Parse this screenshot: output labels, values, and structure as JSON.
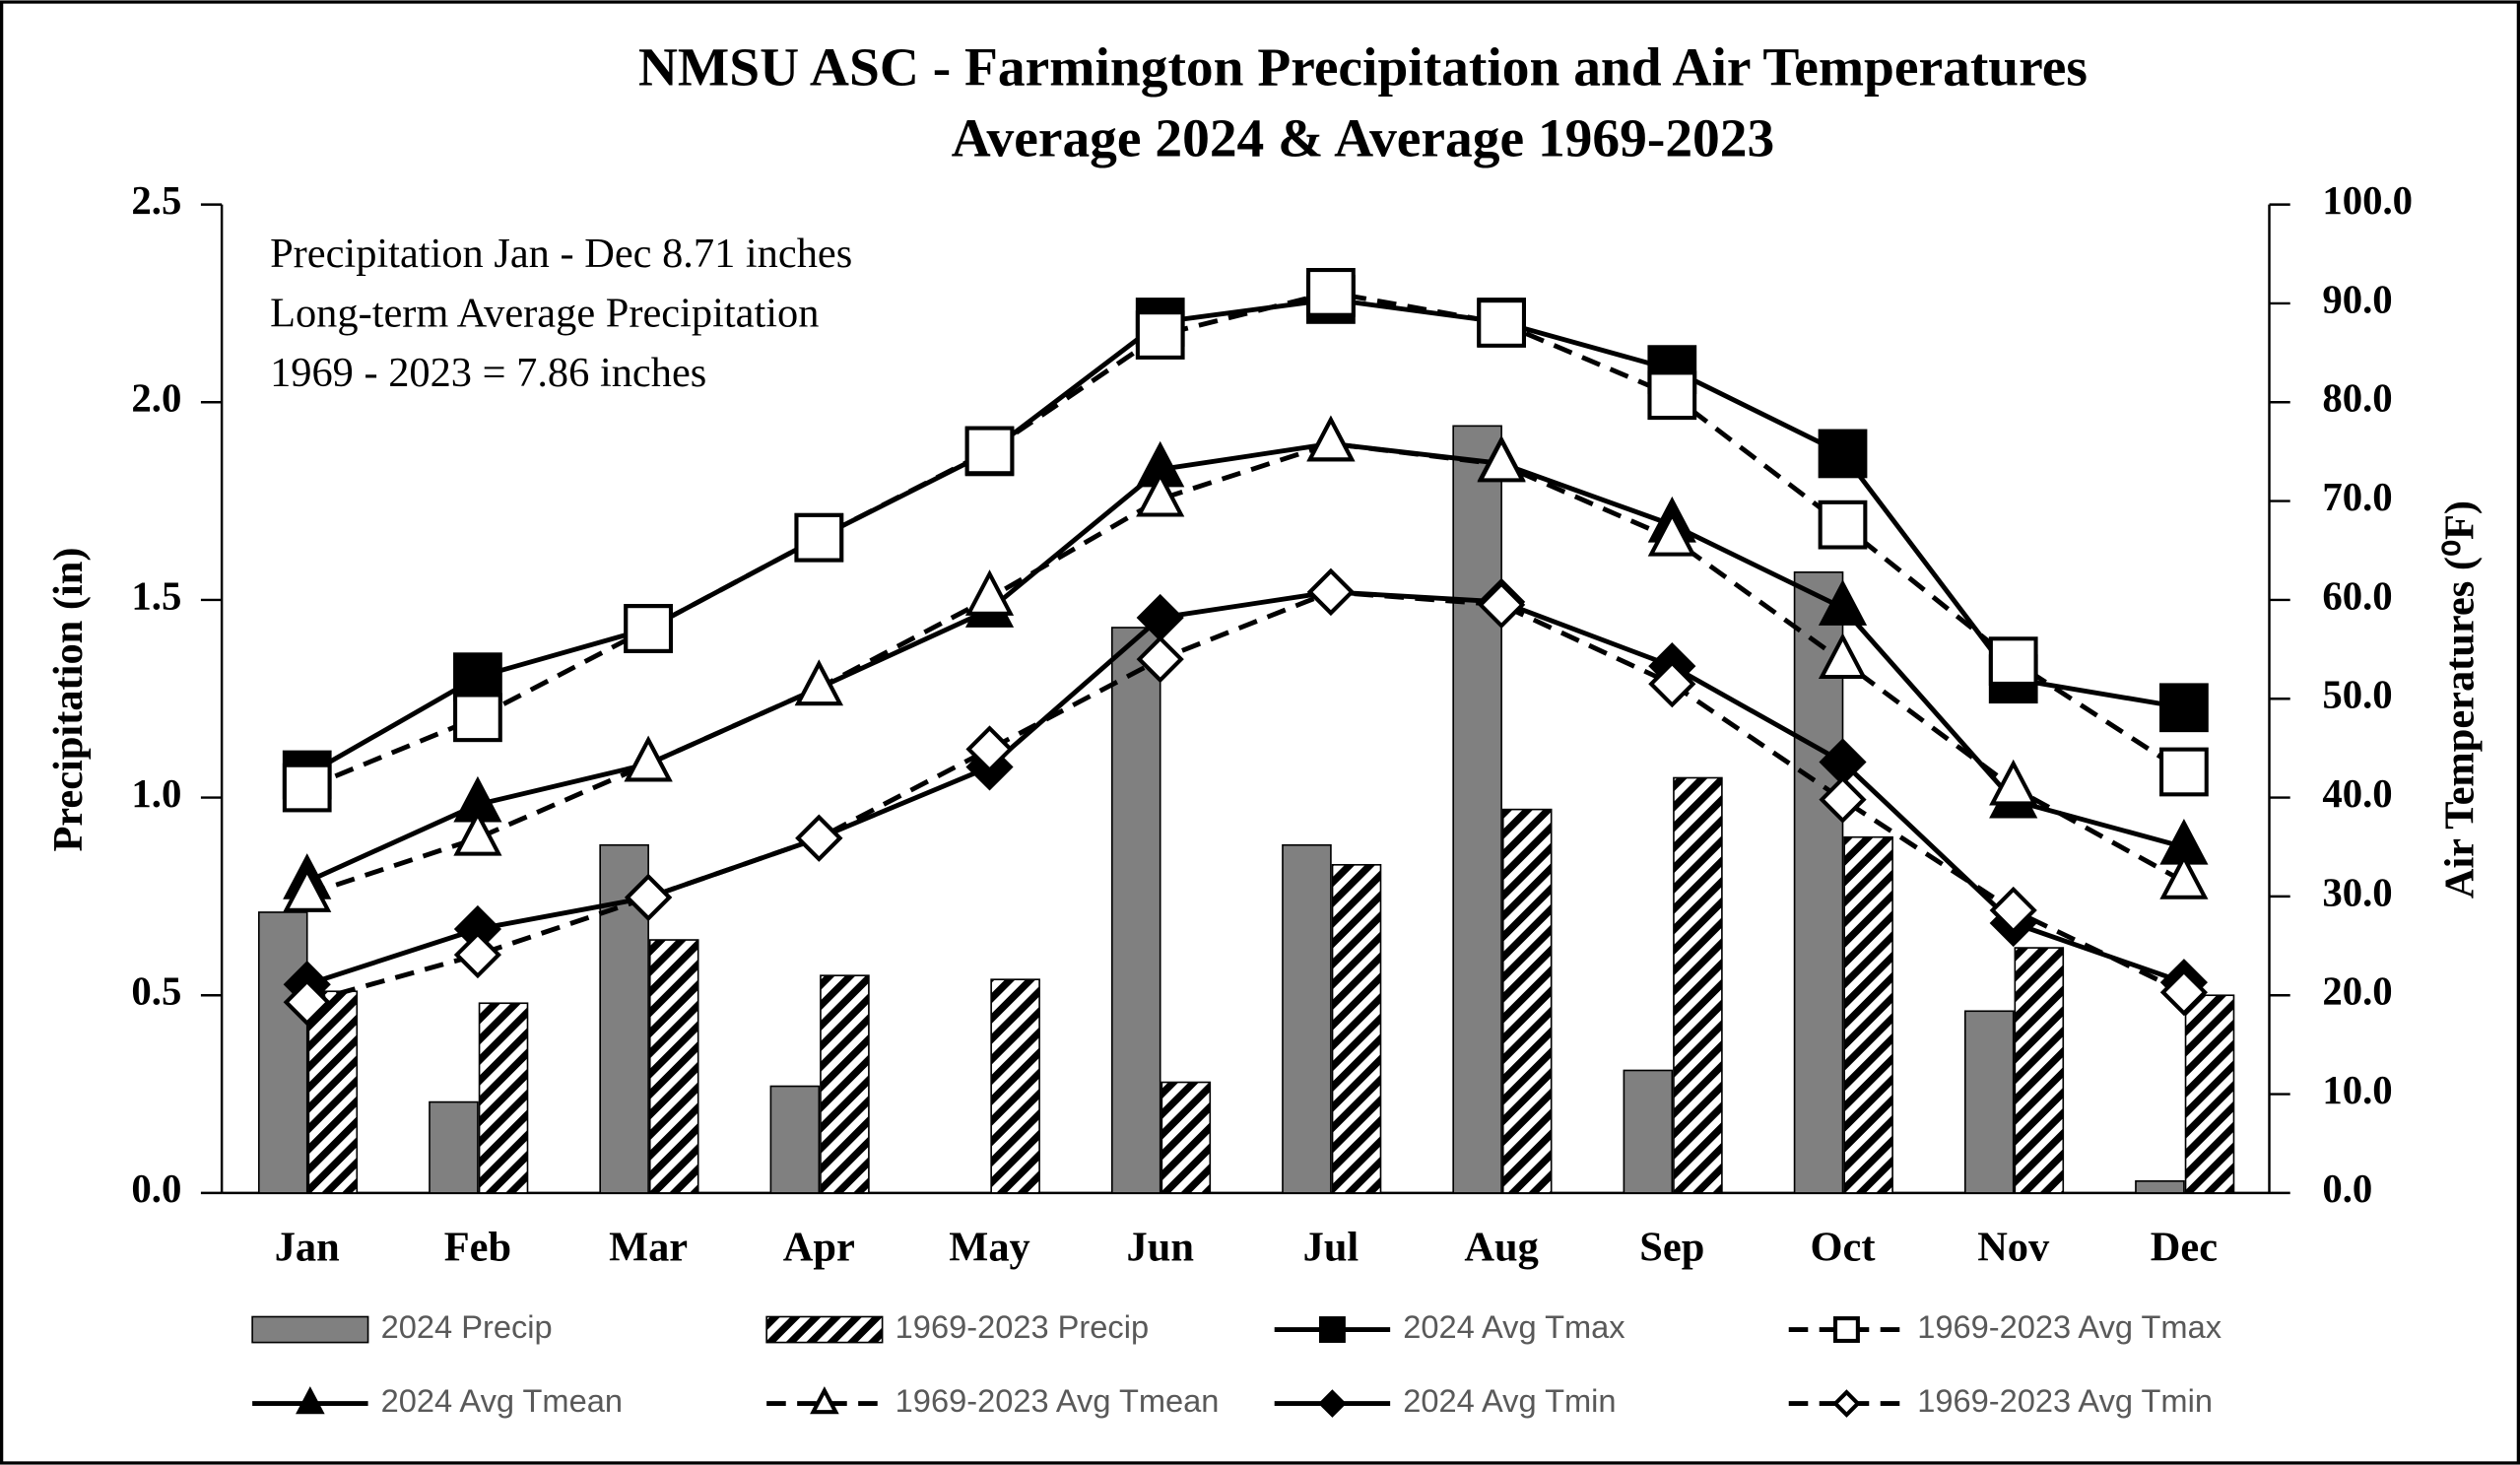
{
  "chart_data": {
    "type": "combo",
    "title": "NMSU ASC - Farmington Precipitation and Air Temperatures",
    "subtitle": "Average 2024 & Average 1969-2023",
    "annotations": [
      "Precipitation Jan - Dec 8.71 inches",
      "Long-term Average Precipitation",
      "1969 - 2023  =  7.86 inches"
    ],
    "y_label": "Precipitation (in)",
    "y2_label": "Air Temperatures (⁰F)",
    "categories": [
      "Jan",
      "Feb",
      "Mar",
      "Apr",
      "May",
      "Jun",
      "Jul",
      "Aug",
      "Sep",
      "Oct",
      "Nov",
      "Dec"
    ],
    "ylim": [
      0,
      2.5
    ],
    "yticks": [
      {
        "value": 0,
        "label": "0.0"
      },
      {
        "value": 0.5,
        "label": "0.5"
      },
      {
        "value": 1,
        "label": "1.0"
      },
      {
        "value": 1.5,
        "label": "1.5"
      },
      {
        "value": 2,
        "label": "2.0"
      },
      {
        "value": 2.5,
        "label": "2.5"
      }
    ],
    "y2lim": [
      0,
      100
    ],
    "y2ticks": [
      {
        "value": 0,
        "label": "0.0"
      },
      {
        "value": 10,
        "label": "10.0"
      },
      {
        "value": 20,
        "label": "20.0"
      },
      {
        "value": 30,
        "label": "30.0"
      },
      {
        "value": 40,
        "label": "40.0"
      },
      {
        "value": 50,
        "label": "50.0"
      },
      {
        "value": 60,
        "label": "60.0"
      },
      {
        "value": 70,
        "label": "70.0"
      },
      {
        "value": 80,
        "label": "80.0"
      },
      {
        "value": 90,
        "label": "90.0"
      },
      {
        "value": 100,
        "label": "100.0"
      }
    ],
    "series": [
      {
        "name": "2024 Precip",
        "type": "bar",
        "color": "#808080",
        "values": [
          0.71,
          0.23,
          0.88,
          0.27,
          0,
          1.43,
          0.88,
          1.94,
          0.31,
          1.57,
          0.46,
          0.03
        ]
      },
      {
        "name": "1969-2023 Precip",
        "type": "bar",
        "pattern": "hatch",
        "color": "#000000",
        "values": [
          0.51,
          0.48,
          0.64,
          0.55,
          0.54,
          0.28,
          0.83,
          0.97,
          1.05,
          0.9,
          0.62,
          0.5
        ]
      },
      {
        "name": "2024 Avg Tmax",
        "type": "line",
        "axis": "y2",
        "color": "#000000",
        "marker": "square",
        "filled": true,
        "dashed": false,
        "values": [
          42.3,
          52.2,
          57.1,
          66.3,
          75.0,
          88.1,
          90.4,
          88.1,
          83.3,
          74.8,
          52.0,
          49.1
        ]
      },
      {
        "name": "1969-2023 Avg Tmax",
        "type": "line",
        "axis": "y2",
        "color": "#000000",
        "marker": "square",
        "filled": false,
        "dashed": true,
        "values": [
          41.0,
          48.1,
          57.1,
          66.3,
          75.1,
          86.8,
          91.1,
          88.0,
          80.7,
          67.6,
          53.8,
          42.6
        ]
      },
      {
        "name": "2024 Avg Tmean",
        "type": "line",
        "axis": "y2",
        "color": "#000000",
        "marker": "triangle",
        "filled": true,
        "dashed": false,
        "values": [
          31.5,
          39.3,
          43.4,
          51.1,
          59.0,
          73.2,
          75.8,
          73.8,
          67.6,
          59.2,
          39.7,
          35.0
        ]
      },
      {
        "name": "1969-2023 Avg Tmean",
        "type": "line",
        "axis": "y2",
        "color": "#000000",
        "marker": "triangle",
        "filled": false,
        "dashed": true,
        "values": [
          30.2,
          35.9,
          43.4,
          51.1,
          60.2,
          70.2,
          75.8,
          73.7,
          66.2,
          53.8,
          41.0,
          31.5
        ]
      },
      {
        "name": "2024 Avg Tmin",
        "type": "line",
        "axis": "y2",
        "color": "#000000",
        "marker": "diamond",
        "filled": true,
        "dashed": false,
        "values": [
          21.1,
          26.7,
          29.9,
          35.9,
          43.1,
          58.2,
          60.8,
          59.8,
          53.3,
          43.6,
          27.3,
          21.3
        ]
      },
      {
        "name": "1969-2023 Avg Tmin",
        "type": "line",
        "axis": "y2",
        "color": "#000000",
        "marker": "diamond",
        "filled": false,
        "dashed": true,
        "values": [
          19.3,
          24.1,
          29.9,
          35.9,
          44.9,
          54.0,
          60.8,
          59.5,
          51.5,
          39.8,
          28.6,
          20.3
        ]
      }
    ]
  }
}
